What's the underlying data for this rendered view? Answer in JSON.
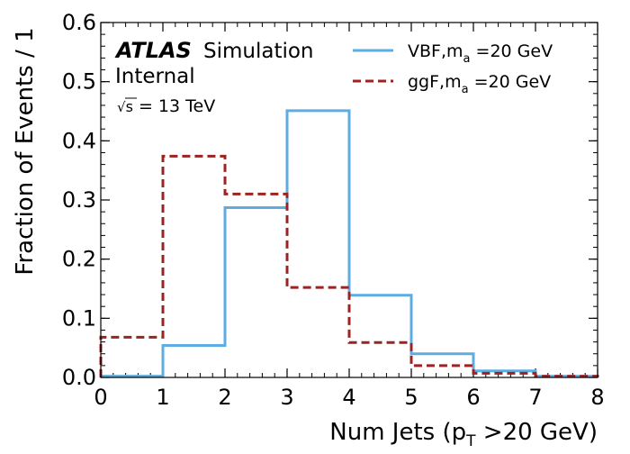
{
  "chart_data": {
    "type": "histogram",
    "bin_edges": [
      0,
      1,
      2,
      3,
      4,
      5,
      6,
      7,
      8
    ],
    "xlim": [
      0,
      8
    ],
    "ylim": [
      0,
      0.6
    ],
    "x_ticks": [
      0,
      1,
      2,
      3,
      4,
      5,
      6,
      7,
      8
    ],
    "y_ticks": [
      0.0,
      0.1,
      0.2,
      0.3,
      0.4,
      0.5,
      0.6
    ],
    "x_tick_labels": [
      "0",
      "1",
      "2",
      "3",
      "4",
      "5",
      "6",
      "7",
      "8"
    ],
    "y_tick_labels": [
      "0.0",
      "0.1",
      "0.2",
      "0.3",
      "0.4",
      "0.5",
      "0.6"
    ],
    "xlabel": {
      "main": "Num Jets (p",
      "sub": "T",
      "rest": " >20 GeV)"
    },
    "ylabel": "Fraction of Events / 1",
    "grid": false,
    "legend_position": "top-right",
    "series": [
      {
        "legend": {
          "main": "VBF,m",
          "sub": "a",
          "rest": " =20 GeV"
        },
        "values": [
          0.002,
          0.054,
          0.287,
          0.451,
          0.139,
          0.04,
          0.011,
          0.002
        ],
        "color": "#5dade2",
        "line_style": "solid"
      },
      {
        "legend": {
          "main": "ggF,m",
          "sub": "a",
          "rest": " =20 GeV"
        },
        "values": [
          0.068,
          0.374,
          0.31,
          0.152,
          0.059,
          0.02,
          0.007,
          0.002
        ],
        "color": "#9b2423",
        "line_style": "dashed"
      }
    ],
    "annotations": {
      "atlas": "ATLAS",
      "simulation": "Simulation",
      "internal": "Internal",
      "energy_sqrt": "√",
      "energy_s": "s",
      "energy_rest": " = 13 TeV"
    }
  }
}
